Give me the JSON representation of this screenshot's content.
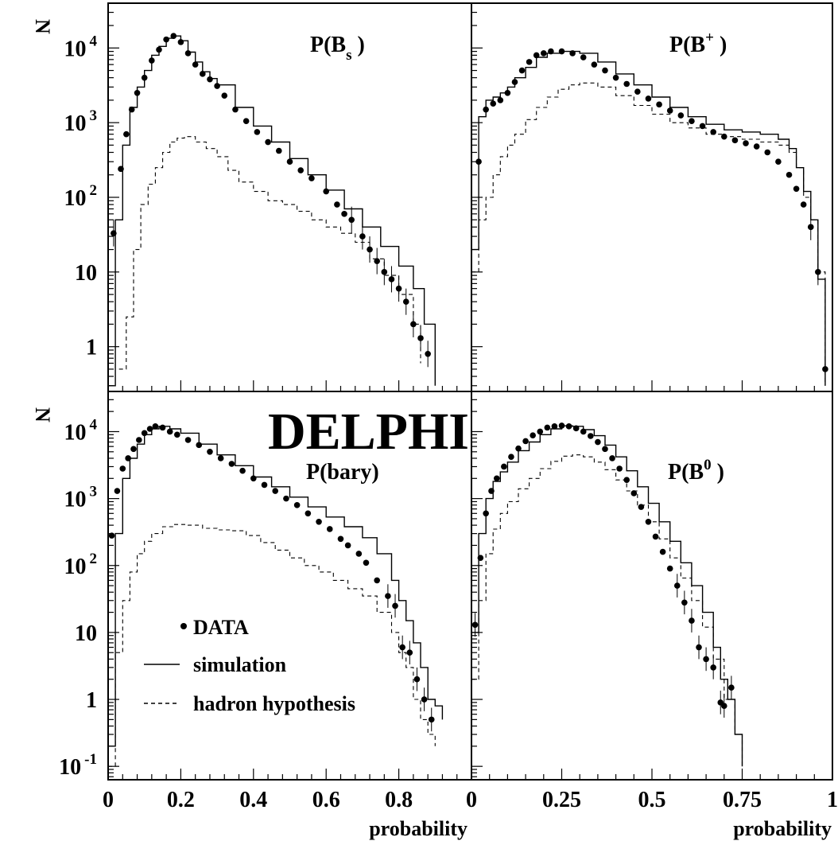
{
  "figure": {
    "axis_title_y": "N",
    "axis_title_x": "probability",
    "watermark": "DELPHI",
    "legend": {
      "data": "DATA",
      "simulation": "simulation",
      "hadron": "hadron hypothesis"
    }
  },
  "chart_data": [
    {
      "type": "line",
      "title": "P(B_s )",
      "title_parts": [
        "P(B",
        "s",
        " )"
      ],
      "title_style": "sub",
      "ylabel": "N",
      "xlabel": "",
      "yscale": "log",
      "xlim": [
        0,
        1
      ],
      "ylim_log10": [
        -0.6,
        4.6
      ],
      "ytick_labels": [
        "1",
        "10",
        "10 2",
        "10 3",
        "10 4"
      ],
      "xtick_labels": [],
      "grid": false,
      "series": [
        {
          "name": "DATA",
          "style": "points",
          "x": [
            0.015,
            0.035,
            0.05,
            0.065,
            0.08,
            0.1,
            0.12,
            0.14,
            0.16,
            0.18,
            0.2,
            0.22,
            0.24,
            0.26,
            0.28,
            0.3,
            0.32,
            0.35,
            0.38,
            0.41,
            0.44,
            0.47,
            0.5,
            0.53,
            0.56,
            0.6,
            0.63,
            0.65,
            0.67,
            0.7,
            0.72,
            0.74,
            0.76,
            0.78,
            0.8,
            0.82,
            0.84,
            0.86,
            0.88
          ],
          "y": [
            33.0,
            240.0,
            700.0,
            1500.0,
            2500.0,
            4000.0,
            6800.0,
            9500.0,
            13000.0,
            14500.0,
            12000.0,
            8500.0,
            6000.0,
            4500.0,
            3800.0,
            3100.0,
            2300.0,
            1500.0,
            1050.0,
            750.0,
            550.0,
            420.0,
            300.0,
            230.0,
            180.0,
            120.0,
            80.0,
            60.0,
            50.0,
            30.0,
            20.0,
            14.0,
            10.0,
            8.0,
            6.0,
            4.0,
            2.0,
            1.3,
            0.8
          ]
        },
        {
          "name": "simulation",
          "style": "solid",
          "x": [
            0.0,
            0.02,
            0.04,
            0.06,
            0.08,
            0.1,
            0.12,
            0.14,
            0.16,
            0.18,
            0.2,
            0.22,
            0.24,
            0.26,
            0.28,
            0.3,
            0.35,
            0.4,
            0.45,
            0.5,
            0.55,
            0.6,
            0.65,
            0.7,
            0.75,
            0.8,
            0.84,
            0.87,
            0.9
          ],
          "y": [
            0.3,
            50.0,
            500.0,
            1600.0,
            3000.0,
            5000.0,
            8000.0,
            10500.0,
            13500.0,
            14500.0,
            12500.0,
            8800.0,
            6500.0,
            4800.0,
            3900.0,
            3200.0,
            1600.0,
            900.0,
            550.0,
            330.0,
            200.0,
            125.0,
            70.0,
            40.0,
            22.0,
            12.0,
            6.0,
            2.0,
            0.3
          ]
        },
        {
          "name": "hadron hypothesis",
          "style": "dashed",
          "x": [
            0.03,
            0.05,
            0.07,
            0.09,
            0.11,
            0.13,
            0.15,
            0.17,
            0.19,
            0.21,
            0.24,
            0.27,
            0.3,
            0.33,
            0.36,
            0.4,
            0.44,
            0.48,
            0.52,
            0.56,
            0.6,
            0.64,
            0.68,
            0.72,
            0.76,
            0.8,
            0.84,
            0.86
          ],
          "y": [
            0.5,
            2.5,
            20.0,
            80.0,
            150.0,
            250.0,
            400.0,
            550.0,
            620.0,
            650.0,
            550.0,
            450.0,
            350.0,
            230.0,
            160.0,
            120.0,
            90.0,
            80.0,
            65.0,
            50.0,
            40.0,
            33.0,
            25.0,
            15.0,
            9.0,
            5.0,
            2.0,
            0.6
          ]
        }
      ]
    },
    {
      "type": "line",
      "title": "P(B^+ )",
      "title_parts": [
        "P(B",
        "+",
        " )"
      ],
      "title_style": "sup",
      "ylabel": "",
      "xlabel": "",
      "yscale": "log",
      "xlim": [
        0,
        1
      ],
      "ylim_log10": [
        -0.6,
        4.6
      ],
      "ytick_labels": [],
      "xtick_labels": [],
      "grid": false,
      "series": [
        {
          "name": "DATA",
          "style": "points",
          "x": [
            0.02,
            0.04,
            0.06,
            0.08,
            0.1,
            0.12,
            0.14,
            0.16,
            0.18,
            0.2,
            0.22,
            0.25,
            0.28,
            0.31,
            0.34,
            0.37,
            0.4,
            0.43,
            0.46,
            0.49,
            0.52,
            0.55,
            0.58,
            0.61,
            0.64,
            0.67,
            0.7,
            0.73,
            0.76,
            0.79,
            0.82,
            0.85,
            0.88,
            0.9,
            0.92,
            0.94,
            0.96,
            0.98
          ],
          "y": [
            300.0,
            1500.0,
            1800.0,
            2000.0,
            2500.0,
            3500.0,
            5000.0,
            6500.0,
            8000.0,
            8500.0,
            9000.0,
            9000.0,
            8500.0,
            7500.0,
            6000.0,
            5000.0,
            4000.0,
            3300.0,
            2600.0,
            2100.0,
            1750.0,
            1450.0,
            1250.0,
            1050.0,
            900.0,
            750.0,
            650.0,
            580.0,
            530.0,
            480.0,
            400.0,
            300.0,
            200.0,
            130.0,
            80.0,
            40.0,
            10.0,
            0.5
          ]
        },
        {
          "name": "simulation",
          "style": "solid",
          "x": [
            0.0,
            0.02,
            0.04,
            0.06,
            0.08,
            0.1,
            0.12,
            0.15,
            0.18,
            0.21,
            0.25,
            0.3,
            0.35,
            0.4,
            0.45,
            0.5,
            0.55,
            0.6,
            0.65,
            0.7,
            0.75,
            0.8,
            0.85,
            0.88,
            0.9,
            0.92,
            0.94,
            0.96,
            0.98
          ],
          "y": [
            20.0,
            1200.0,
            2000.0,
            2200.0,
            2500.0,
            3000.0,
            4000.0,
            5500.0,
            7500.0,
            8500.0,
            9000.0,
            8500.0,
            6500.0,
            4500.0,
            3200.0,
            2200.0,
            1600.0,
            1200.0,
            950.0,
            800.0,
            750.0,
            700.0,
            600.0,
            450.0,
            250.0,
            120.0,
            50.0,
            8.0,
            0.3
          ]
        },
        {
          "name": "hadron hypothesis",
          "style": "dashed",
          "x": [
            0.0,
            0.02,
            0.04,
            0.06,
            0.08,
            0.1,
            0.12,
            0.15,
            0.18,
            0.21,
            0.24,
            0.27,
            0.3,
            0.35,
            0.4,
            0.45,
            0.5,
            0.55,
            0.6,
            0.65,
            0.7,
            0.75,
            0.8,
            0.85,
            0.88,
            0.9,
            0.92,
            0.94,
            0.96,
            0.98
          ],
          "y": [
            10.0,
            50.0,
            100.0,
            200.0,
            350.0,
            500.0,
            700.0,
            1100.0,
            1600.0,
            2200.0,
            2800.0,
            3200.0,
            3400.0,
            3000.0,
            2300.0,
            1700.0,
            1300.0,
            1000.0,
            850.0,
            700.0,
            650.0,
            600.0,
            550.0,
            500.0,
            400.0,
            250.0,
            100.0,
            50.0,
            10.0,
            0.3
          ]
        }
      ]
    },
    {
      "type": "line",
      "title": "P(bary)",
      "title_parts": [
        "P(bary)",
        "",
        ""
      ],
      "title_style": "none",
      "ylabel": "N",
      "xlabel": "probability",
      "yscale": "log",
      "xlim": [
        0,
        1
      ],
      "ylim_log10": [
        -1.2,
        4.6
      ],
      "ytick_labels": [
        "10 -1",
        "1",
        "10",
        "10 2",
        "10 3",
        "10 4"
      ],
      "xtick_labels": [
        "0",
        "0.2",
        "0.4",
        "0.6",
        "0.8"
      ],
      "xtick_values": [
        0,
        0.2,
        0.4,
        0.6,
        0.8
      ],
      "grid": false,
      "series": [
        {
          "name": "DATA",
          "style": "points",
          "x": [
            0.01,
            0.025,
            0.04,
            0.055,
            0.07,
            0.085,
            0.1,
            0.115,
            0.13,
            0.15,
            0.17,
            0.19,
            0.22,
            0.25,
            0.28,
            0.31,
            0.34,
            0.37,
            0.4,
            0.43,
            0.46,
            0.49,
            0.52,
            0.55,
            0.58,
            0.61,
            0.64,
            0.66,
            0.69,
            0.71,
            0.74,
            0.77,
            0.79,
            0.81,
            0.83,
            0.85,
            0.87,
            0.89
          ],
          "y": [
            280.0,
            1300.0,
            2800.0,
            4000.0,
            5500.0,
            7500.0,
            9500.0,
            11000.0,
            12000.0,
            11500.0,
            10000.0,
            9000.0,
            7500.0,
            6300.0,
            5000.0,
            4000.0,
            3300.0,
            2600.0,
            2000.0,
            1600.0,
            1300.0,
            1000.0,
            800.0,
            600.0,
            450.0,
            350.0,
            250.0,
            200.0,
            150.0,
            110.0,
            60.0,
            35.0,
            25.0,
            6.0,
            5.0,
            2.0,
            1.0,
            0.5
          ]
        },
        {
          "name": "simulation",
          "style": "solid",
          "x": [
            0.0,
            0.02,
            0.04,
            0.06,
            0.08,
            0.1,
            0.12,
            0.14,
            0.17,
            0.2,
            0.25,
            0.3,
            0.35,
            0.4,
            0.45,
            0.5,
            0.55,
            0.6,
            0.65,
            0.7,
            0.74,
            0.78,
            0.8,
            0.82,
            0.84,
            0.86,
            0.88,
            0.9,
            0.92
          ],
          "y": [
            0.2,
            300.0,
            2000.0,
            4000.0,
            6500.0,
            9000.0,
            11000.0,
            12000.0,
            11000.0,
            9500.0,
            6500.0,
            4500.0,
            3100.0,
            2100.0,
            1500.0,
            1050.0,
            750.0,
            530.0,
            380.0,
            260.0,
            150.0,
            60.0,
            30.0,
            15.0,
            7.0,
            3.0,
            1.0,
            0.8,
            0.5
          ]
        },
        {
          "name": "hadron hypothesis",
          "style": "dashed",
          "x": [
            0.0,
            0.02,
            0.04,
            0.06,
            0.08,
            0.1,
            0.12,
            0.15,
            0.18,
            0.22,
            0.26,
            0.3,
            0.34,
            0.38,
            0.42,
            0.46,
            0.5,
            0.54,
            0.58,
            0.62,
            0.66,
            0.7,
            0.74,
            0.78,
            0.8,
            0.82,
            0.84,
            0.86,
            0.88,
            0.9
          ],
          "y": [
            0.1,
            5.0,
            30.0,
            80.0,
            150.0,
            230.0,
            300.0,
            380.0,
            410.0,
            400.0,
            360.0,
            340.0,
            330.0,
            280.0,
            220.0,
            170.0,
            130.0,
            100.0,
            80.0,
            60.0,
            45.0,
            35.0,
            20.0,
            10.0,
            5.0,
            3.0,
            1.0,
            0.5,
            0.3,
            0.2
          ]
        }
      ]
    },
    {
      "type": "line",
      "title": "P(B^0 )",
      "title_parts": [
        "P(B",
        "0",
        " )"
      ],
      "title_style": "sup",
      "ylabel": "",
      "xlabel": "probability",
      "yscale": "log",
      "xlim": [
        0,
        1
      ],
      "ylim_log10": [
        -1.2,
        4.6
      ],
      "ytick_labels": [],
      "xtick_labels": [
        "0",
        "0.25",
        "0.5",
        "0.75",
        "1"
      ],
      "xtick_values": [
        0,
        0.25,
        0.5,
        0.75,
        1
      ],
      "grid": false,
      "series": [
        {
          "name": "DATA",
          "style": "points",
          "x": [
            0.01,
            0.025,
            0.04,
            0.055,
            0.07,
            0.09,
            0.11,
            0.13,
            0.15,
            0.17,
            0.19,
            0.21,
            0.23,
            0.25,
            0.27,
            0.29,
            0.31,
            0.33,
            0.35,
            0.37,
            0.39,
            0.41,
            0.43,
            0.45,
            0.47,
            0.49,
            0.51,
            0.53,
            0.55,
            0.57,
            0.59,
            0.61,
            0.63,
            0.65,
            0.67,
            0.69,
            0.7,
            0.72
          ],
          "y": [
            13.0,
            130.0,
            600.0,
            1300.0,
            2000.0,
            3000.0,
            4200.0,
            5600.0,
            7200.0,
            8800.0,
            10000.0,
            11500.0,
            12000.0,
            12300.0,
            12000.0,
            11200.0,
            10000.0,
            8600.0,
            7000.0,
            5500.0,
            4000.0,
            2800.0,
            1900.0,
            1200.0,
            750.0,
            450.0,
            270.0,
            160.0,
            90.0,
            50.0,
            28.0,
            15.0,
            6.0,
            4.0,
            3.0,
            0.9,
            0.8,
            1.5
          ]
        },
        {
          "name": "simulation",
          "style": "solid",
          "x": [
            0.0,
            0.02,
            0.04,
            0.06,
            0.08,
            0.1,
            0.13,
            0.16,
            0.19,
            0.22,
            0.25,
            0.28,
            0.31,
            0.34,
            0.37,
            0.4,
            0.43,
            0.46,
            0.49,
            0.52,
            0.55,
            0.58,
            0.61,
            0.64,
            0.67,
            0.69,
            0.71,
            0.73,
            0.75
          ],
          "y": [
            10.0,
            300.0,
            1000.0,
            1800.0,
            2500.0,
            3500.0,
            5200.0,
            7000.0,
            9000.0,
            11000.0,
            12200.0,
            12000.0,
            10700.0,
            8700.0,
            6300.0,
            4200.0,
            2600.0,
            1500.0,
            850.0,
            450.0,
            230.0,
            110.0,
            50.0,
            20.0,
            6.0,
            2.0,
            1.0,
            0.3,
            0.1
          ]
        },
        {
          "name": "hadron hypothesis",
          "style": "dashed",
          "x": [
            0.0,
            0.02,
            0.04,
            0.06,
            0.08,
            0.1,
            0.13,
            0.16,
            0.19,
            0.22,
            0.25,
            0.28,
            0.31,
            0.34,
            0.37,
            0.4,
            0.43,
            0.46,
            0.49,
            0.52,
            0.55,
            0.58,
            0.61,
            0.64,
            0.67,
            0.7,
            0.73,
            0.75
          ],
          "y": [
            2.0,
            30.0,
            150.0,
            350.0,
            600.0,
            900.0,
            1400.0,
            2000.0,
            2800.0,
            3600.0,
            4300.0,
            4500.0,
            4200.0,
            3500.0,
            2700.0,
            1900.0,
            1300.0,
            800.0,
            450.0,
            250.0,
            130.0,
            65.0,
            30.0,
            12.0,
            4.0,
            1.0,
            0.3,
            0.1
          ]
        }
      ]
    }
  ]
}
